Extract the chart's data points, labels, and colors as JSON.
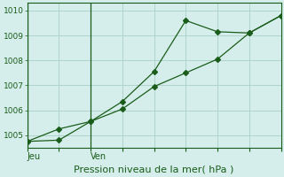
{
  "xlabel": "Pression niveau de la mer( hPa )",
  "background_color": "#d5eeeb",
  "grid_color": "#aed4cc",
  "line_color": "#1a5c1a",
  "spine_color": "#1a5c1a",
  "ylim": [
    1004.5,
    1010.3
  ],
  "yticks": [
    1005,
    1006,
    1007,
    1008,
    1009,
    1010
  ],
  "xlim": [
    0,
    16
  ],
  "series1_x": [
    0,
    2,
    4,
    6,
    8,
    10,
    12,
    14,
    16
  ],
  "series1_y": [
    1004.75,
    1005.25,
    1005.55,
    1006.35,
    1007.55,
    1009.6,
    1009.15,
    1009.1,
    1009.8
  ],
  "series2_x": [
    0,
    2,
    4,
    6,
    8,
    10,
    12,
    14,
    16
  ],
  "series2_y": [
    1004.75,
    1004.8,
    1005.55,
    1006.05,
    1006.95,
    1007.5,
    1008.05,
    1009.1,
    1009.8
  ],
  "xtick_positions": [
    0.5,
    5.5
  ],
  "xtick_labels": [
    "Jeu",
    "Ven"
  ],
  "vline_x": [
    0.5,
    5.5
  ],
  "marker_size": 3,
  "xlabel_fontsize": 8,
  "ytick_fontsize": 6.5,
  "xtick_fontsize": 7
}
